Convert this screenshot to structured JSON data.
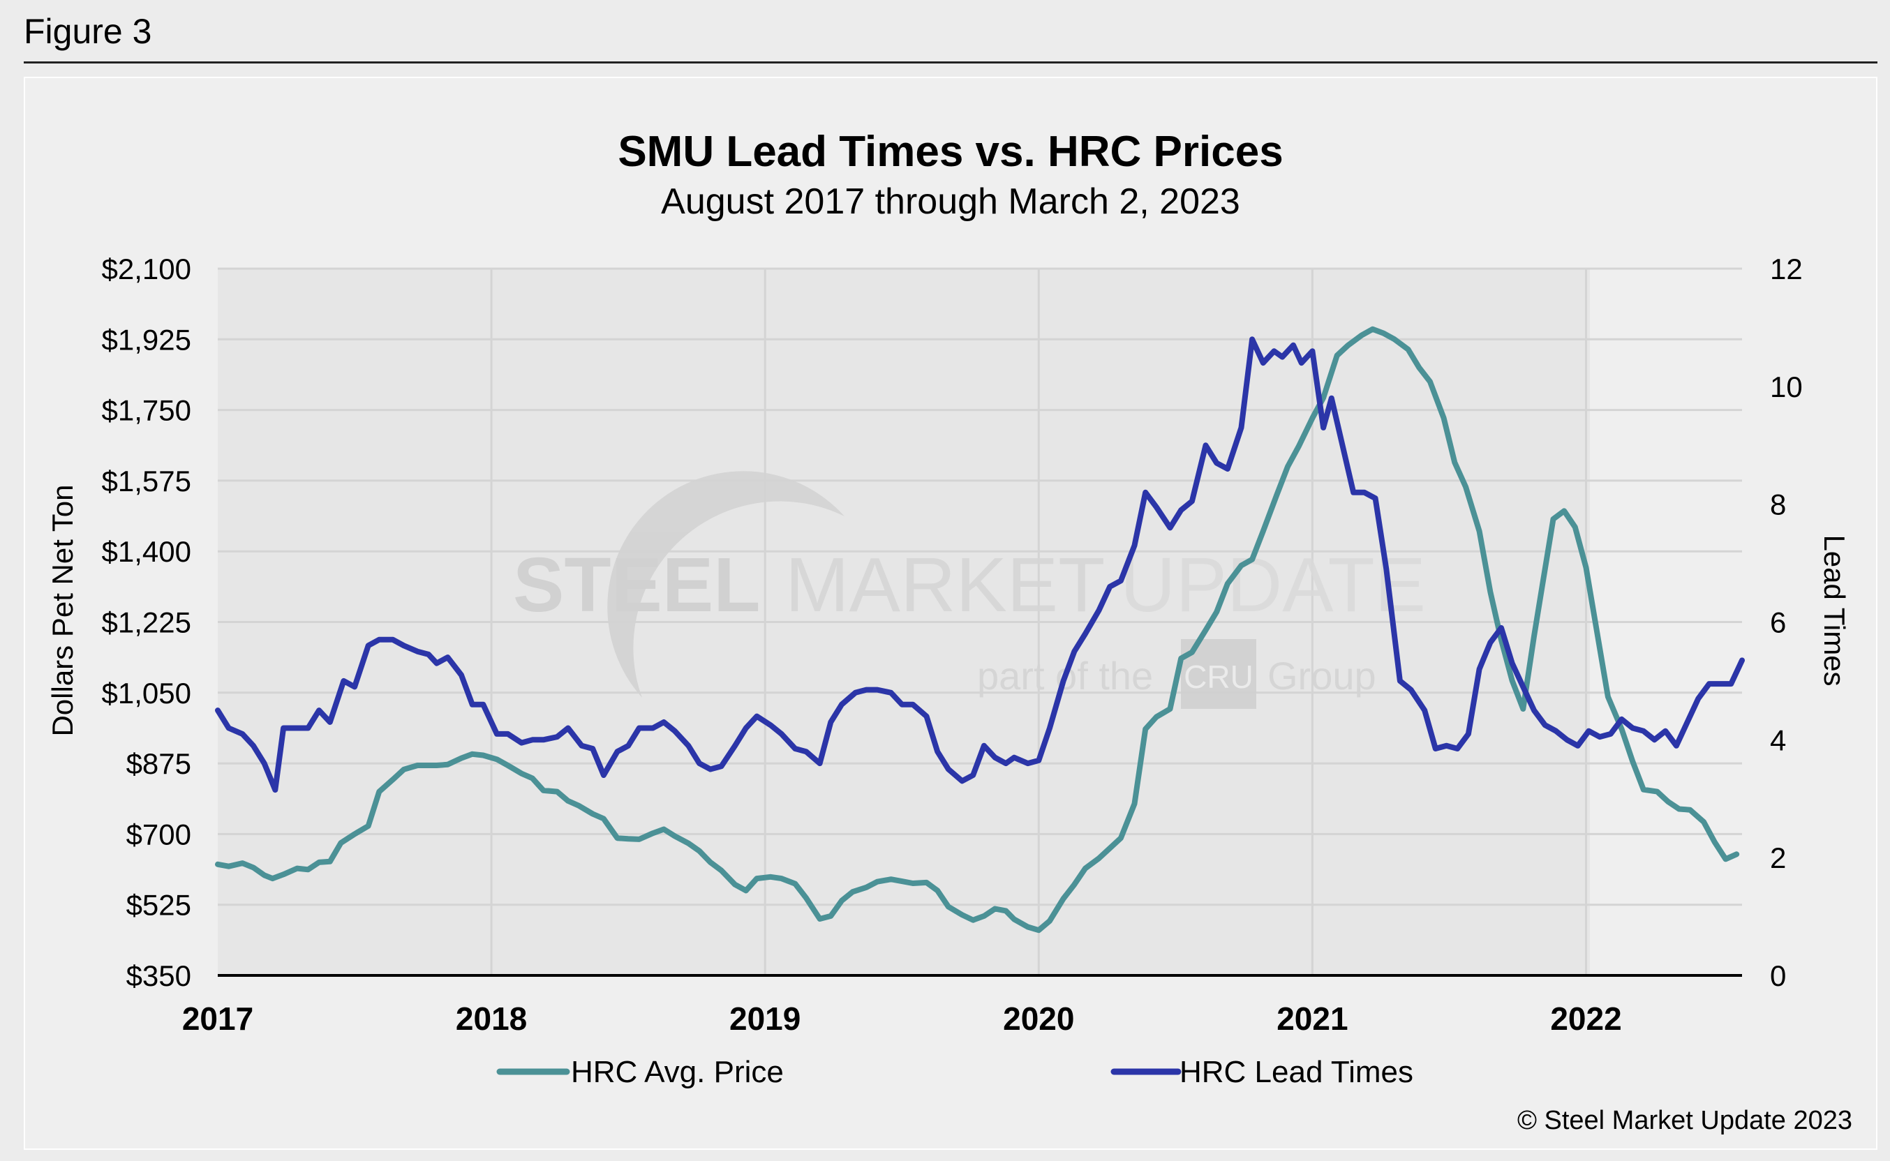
{
  "figure_label": "Figure 3",
  "copyright": "© Steel Market Update 2023",
  "watermark": {
    "brand_bold": "STEEL",
    "brand_mid": "MARKET",
    "brand_light": "UPDATE",
    "tag_prefix": "part of the",
    "tag_logo": "CRU",
    "tag_suffix": "Group"
  },
  "colors": {
    "price": "#4b9196",
    "lead": "#2b35a8",
    "grid": "#d4d4d4",
    "plot_bg": "#e6e6e6"
  },
  "chart_data": {
    "type": "line",
    "title": "SMU Lead Times vs. HRC Prices",
    "subtitle": "August 2017 through March 2, 2023",
    "ylabel": "Dollars Pet Net Ton",
    "y2label": "Lead Times",
    "xlim": [
      2017,
      2022.57
    ],
    "x_ticks": [
      2017,
      2018,
      2019,
      2020,
      2021,
      2022
    ],
    "x_tick_labels": [
      "2017",
      "2018",
      "2019",
      "2020",
      "2021",
      "2022"
    ],
    "ylim": [
      350,
      2100
    ],
    "y_ticks": [
      350,
      525,
      700,
      875,
      1050,
      1225,
      1400,
      1575,
      1750,
      1925,
      2100
    ],
    "y_tick_labels": [
      "$350",
      "$525",
      "$700",
      "$875",
      "$1,050",
      "$1,225",
      "$1,400",
      "$1,575",
      "$1,750",
      "$1,925",
      "$2,100"
    ],
    "y2lim": [
      0,
      12
    ],
    "y2_ticks": [
      0,
      2,
      4,
      6,
      8,
      10,
      12
    ],
    "y2_tick_labels": [
      "0",
      "2",
      "4",
      "6",
      "8",
      "10",
      "12"
    ],
    "legend": [
      "HRC Avg. Price",
      "HRC Lead Times"
    ],
    "series": [
      {
        "name": "HRC Avg. Price",
        "axis": "left",
        "points": [
          [
            2017.0,
            625
          ],
          [
            2017.04,
            620
          ],
          [
            2017.09,
            628
          ],
          [
            2017.13,
            617
          ],
          [
            2017.17,
            598
          ],
          [
            2017.2,
            590
          ],
          [
            2017.24,
            600
          ],
          [
            2017.29,
            615
          ],
          [
            2017.33,
            612
          ],
          [
            2017.37,
            630
          ],
          [
            2017.41,
            632
          ],
          [
            2017.45,
            678
          ],
          [
            2017.5,
            700
          ],
          [
            2017.55,
            720
          ],
          [
            2017.59,
            805
          ],
          [
            2017.64,
            835
          ],
          [
            2017.68,
            860
          ],
          [
            2017.73,
            870
          ],
          [
            2017.8,
            870
          ],
          [
            2017.84,
            872
          ],
          [
            2017.89,
            888
          ],
          [
            2017.93,
            898
          ],
          [
            2017.97,
            895
          ],
          [
            2018.02,
            885
          ],
          [
            2018.06,
            870
          ],
          [
            2018.11,
            850
          ],
          [
            2018.15,
            838
          ],
          [
            2018.19,
            808
          ],
          [
            2018.24,
            805
          ],
          [
            2018.28,
            782
          ],
          [
            2018.32,
            770
          ],
          [
            2018.37,
            750
          ],
          [
            2018.41,
            738
          ],
          [
            2018.46,
            690
          ],
          [
            2018.5,
            688
          ],
          [
            2018.54,
            687
          ],
          [
            2018.59,
            702
          ],
          [
            2018.63,
            712
          ],
          [
            2018.67,
            695
          ],
          [
            2018.72,
            677
          ],
          [
            2018.76,
            658
          ],
          [
            2018.8,
            630
          ],
          [
            2018.84,
            610
          ],
          [
            2018.89,
            575
          ],
          [
            2018.93,
            560
          ],
          [
            2018.97,
            590
          ],
          [
            2019.02,
            594
          ],
          [
            2019.06,
            590
          ],
          [
            2019.11,
            577
          ],
          [
            2019.15,
            542
          ],
          [
            2019.2,
            490
          ],
          [
            2019.24,
            497
          ],
          [
            2019.28,
            535
          ],
          [
            2019.32,
            557
          ],
          [
            2019.37,
            568
          ],
          [
            2019.41,
            582
          ],
          [
            2019.46,
            588
          ],
          [
            2019.5,
            583
          ],
          [
            2019.54,
            578
          ],
          [
            2019.59,
            580
          ],
          [
            2019.63,
            560
          ],
          [
            2019.67,
            520
          ],
          [
            2019.72,
            500
          ],
          [
            2019.76,
            487
          ],
          [
            2019.8,
            497
          ],
          [
            2019.84,
            515
          ],
          [
            2019.88,
            510
          ],
          [
            2019.91,
            489
          ],
          [
            2019.96,
            470
          ],
          [
            2020.0,
            462
          ],
          [
            2020.04,
            485
          ],
          [
            2020.09,
            540
          ],
          [
            2020.13,
            575
          ],
          [
            2020.17,
            615
          ],
          [
            2020.22,
            640
          ],
          [
            2020.26,
            665
          ],
          [
            2020.3,
            690
          ],
          [
            2020.35,
            775
          ],
          [
            2020.39,
            960
          ],
          [
            2020.43,
            990
          ],
          [
            2020.48,
            1010
          ],
          [
            2020.52,
            1135
          ],
          [
            2020.56,
            1150
          ],
          [
            2020.61,
            1205
          ],
          [
            2020.65,
            1250
          ],
          [
            2020.69,
            1320
          ],
          [
            2020.74,
            1365
          ],
          [
            2020.78,
            1380
          ],
          [
            2020.82,
            1450
          ],
          [
            2020.87,
            1540
          ],
          [
            2020.91,
            1610
          ],
          [
            2020.95,
            1660
          ],
          [
            2021.0,
            1730
          ],
          [
            2021.04,
            1780
          ],
          [
            2021.09,
            1885
          ],
          [
            2021.13,
            1910
          ],
          [
            2021.18,
            1935
          ],
          [
            2021.22,
            1950
          ],
          [
            2021.26,
            1940
          ],
          [
            2021.3,
            1925
          ],
          [
            2021.35,
            1900
          ],
          [
            2021.39,
            1855
          ],
          [
            2021.43,
            1820
          ],
          [
            2021.48,
            1730
          ],
          [
            2021.52,
            1620
          ],
          [
            2021.56,
            1560
          ],
          [
            2021.61,
            1450
          ],
          [
            2021.65,
            1300
          ],
          [
            2021.69,
            1180
          ],
          [
            2021.73,
            1080
          ],
          [
            2021.77,
            1010
          ],
          [
            2021.81,
            1190
          ],
          [
            2021.84,
            1315
          ],
          [
            2021.88,
            1480
          ],
          [
            2021.92,
            1500
          ],
          [
            2021.96,
            1460
          ],
          [
            2022.0,
            1360
          ],
          [
            2022.04,
            1200
          ],
          [
            2022.08,
            1040
          ],
          [
            2022.13,
            960
          ],
          [
            2022.17,
            880
          ],
          [
            2022.21,
            810
          ],
          [
            2022.26,
            805
          ],
          [
            2022.3,
            780
          ],
          [
            2022.34,
            762
          ],
          [
            2022.38,
            760
          ],
          [
            2022.43,
            730
          ],
          [
            2022.47,
            680
          ],
          [
            2022.51,
            638
          ],
          [
            2022.55,
            650
          ]
        ]
      },
      {
        "name": "HRC Lead Times",
        "axis": "right",
        "points": [
          [
            2017.0,
            4.5
          ],
          [
            2017.04,
            4.2
          ],
          [
            2017.09,
            4.1
          ],
          [
            2017.13,
            3.9
          ],
          [
            2017.17,
            3.6
          ],
          [
            2017.21,
            3.15
          ],
          [
            2017.24,
            4.2
          ],
          [
            2017.28,
            4.2
          ],
          [
            2017.33,
            4.2
          ],
          [
            2017.37,
            4.5
          ],
          [
            2017.41,
            4.3
          ],
          [
            2017.46,
            5.0
          ],
          [
            2017.5,
            4.9
          ],
          [
            2017.55,
            5.6
          ],
          [
            2017.59,
            5.7
          ],
          [
            2017.64,
            5.7
          ],
          [
            2017.68,
            5.6
          ],
          [
            2017.73,
            5.5
          ],
          [
            2017.77,
            5.45
          ],
          [
            2017.8,
            5.3
          ],
          [
            2017.84,
            5.4
          ],
          [
            2017.89,
            5.1
          ],
          [
            2017.93,
            4.6
          ],
          [
            2017.97,
            4.6
          ],
          [
            2018.02,
            4.1
          ],
          [
            2018.06,
            4.1
          ],
          [
            2018.11,
            3.95
          ],
          [
            2018.15,
            4.0
          ],
          [
            2018.19,
            4.0
          ],
          [
            2018.24,
            4.05
          ],
          [
            2018.28,
            4.2
          ],
          [
            2018.33,
            3.9
          ],
          [
            2018.37,
            3.85
          ],
          [
            2018.41,
            3.4
          ],
          [
            2018.46,
            3.8
          ],
          [
            2018.5,
            3.9
          ],
          [
            2018.54,
            4.2
          ],
          [
            2018.59,
            4.2
          ],
          [
            2018.63,
            4.3
          ],
          [
            2018.67,
            4.15
          ],
          [
            2018.72,
            3.9
          ],
          [
            2018.76,
            3.6
          ],
          [
            2018.8,
            3.5
          ],
          [
            2018.84,
            3.55
          ],
          [
            2018.89,
            3.9
          ],
          [
            2018.93,
            4.2
          ],
          [
            2018.97,
            4.4
          ],
          [
            2019.02,
            4.25
          ],
          [
            2019.06,
            4.1
          ],
          [
            2019.11,
            3.85
          ],
          [
            2019.15,
            3.8
          ],
          [
            2019.2,
            3.6
          ],
          [
            2019.24,
            4.3
          ],
          [
            2019.28,
            4.6
          ],
          [
            2019.33,
            4.8
          ],
          [
            2019.37,
            4.85
          ],
          [
            2019.41,
            4.85
          ],
          [
            2019.46,
            4.8
          ],
          [
            2019.5,
            4.6
          ],
          [
            2019.54,
            4.6
          ],
          [
            2019.59,
            4.4
          ],
          [
            2019.63,
            3.8
          ],
          [
            2019.67,
            3.5
          ],
          [
            2019.72,
            3.3
          ],
          [
            2019.76,
            3.4
          ],
          [
            2019.8,
            3.9
          ],
          [
            2019.84,
            3.7
          ],
          [
            2019.88,
            3.6
          ],
          [
            2019.91,
            3.7
          ],
          [
            2019.96,
            3.6
          ],
          [
            2020.0,
            3.65
          ],
          [
            2020.04,
            4.2
          ],
          [
            2020.09,
            5.0
          ],
          [
            2020.13,
            5.5
          ],
          [
            2020.17,
            5.8
          ],
          [
            2020.22,
            6.2
          ],
          [
            2020.26,
            6.6
          ],
          [
            2020.3,
            6.7
          ],
          [
            2020.35,
            7.3
          ],
          [
            2020.39,
            8.2
          ],
          [
            2020.43,
            7.95
          ],
          [
            2020.48,
            7.6
          ],
          [
            2020.52,
            7.9
          ],
          [
            2020.56,
            8.05
          ],
          [
            2020.61,
            9.0
          ],
          [
            2020.65,
            8.7
          ],
          [
            2020.69,
            8.6
          ],
          [
            2020.74,
            9.3
          ],
          [
            2020.78,
            10.8
          ],
          [
            2020.82,
            10.4
          ],
          [
            2020.86,
            10.6
          ],
          [
            2020.89,
            10.5
          ],
          [
            2020.93,
            10.7
          ],
          [
            2020.96,
            10.4
          ],
          [
            2021.0,
            10.6
          ],
          [
            2021.04,
            9.3
          ],
          [
            2021.07,
            9.8
          ],
          [
            2021.11,
            9.0
          ],
          [
            2021.15,
            8.2
          ],
          [
            2021.19,
            8.2
          ],
          [
            2021.23,
            8.1
          ],
          [
            2021.27,
            6.9
          ],
          [
            2021.32,
            5.0
          ],
          [
            2021.36,
            4.85
          ],
          [
            2021.41,
            4.5
          ],
          [
            2021.45,
            3.85
          ],
          [
            2021.49,
            3.9
          ],
          [
            2021.53,
            3.85
          ],
          [
            2021.57,
            4.1
          ],
          [
            2021.61,
            5.2
          ],
          [
            2021.65,
            5.65
          ],
          [
            2021.69,
            5.9
          ],
          [
            2021.73,
            5.3
          ],
          [
            2021.77,
            4.9
          ],
          [
            2021.81,
            4.5
          ],
          [
            2021.85,
            4.25
          ],
          [
            2021.89,
            4.15
          ],
          [
            2021.93,
            4.0
          ],
          [
            2021.97,
            3.9
          ],
          [
            2022.01,
            4.15
          ],
          [
            2022.05,
            4.05
          ],
          [
            2022.09,
            4.1
          ],
          [
            2022.13,
            4.35
          ],
          [
            2022.17,
            4.2
          ],
          [
            2022.21,
            4.15
          ],
          [
            2022.25,
            4.0
          ],
          [
            2022.29,
            4.15
          ],
          [
            2022.33,
            3.9
          ],
          [
            2022.37,
            4.3
          ],
          [
            2022.41,
            4.7
          ],
          [
            2022.45,
            4.95
          ],
          [
            2022.49,
            4.95
          ],
          [
            2022.53,
            4.95
          ],
          [
            2022.57,
            5.35
          ]
        ]
      }
    ]
  }
}
